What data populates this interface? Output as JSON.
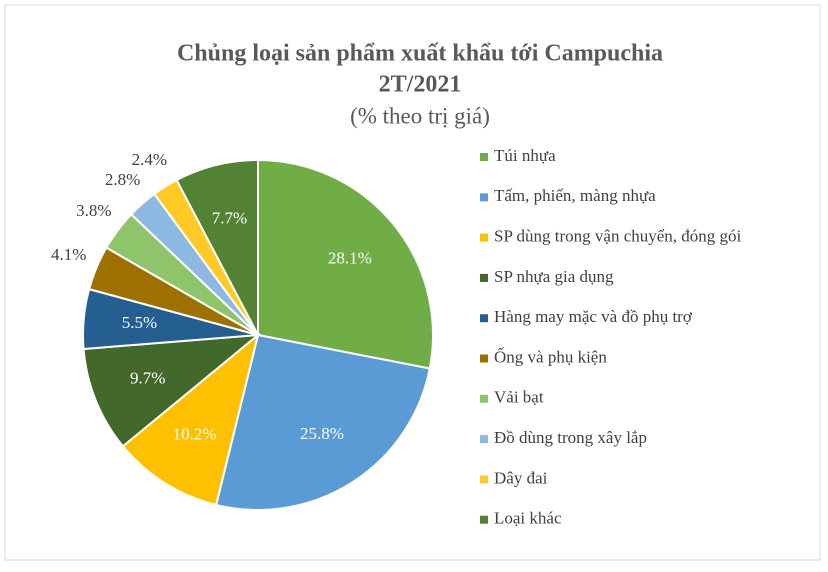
{
  "chart_data": {
    "type": "pie",
    "title": [
      "Chủng loại sản phẩm xuất khẩu tới Campuchia",
      "2T/2021"
    ],
    "subtitle": "(% theo trị giá)",
    "categories": [
      "Túi nhựa",
      "Tấm, phiến, màng nhựa",
      "SP dùng trong vận chuyển, đóng gói",
      "SP nhựa gia dụng",
      "Hàng may mặc và đồ phụ trợ",
      "Ống và phụ kiện",
      "Vải bạt",
      "Đồ dùng trong xây lắp",
      "Dây đai",
      "Loại khác"
    ],
    "values": [
      28.1,
      25.8,
      10.2,
      9.7,
      5.5,
      4.1,
      3.8,
      2.8,
      2.4,
      7.7
    ],
    "value_labels": [
      "28.1%",
      "25.8%",
      "10.2%",
      "9.7%",
      "5.5%",
      "4.1%",
      "3.8%",
      "2.8%",
      "2.4%",
      "7.7%"
    ],
    "colors": [
      "#70ad47",
      "#5b9bd5",
      "#ffc000",
      "#43682b",
      "#255e91",
      "#9e7000",
      "#8fc56a",
      "#8db8e2",
      "#ffc926",
      "#548235"
    ],
    "legend": "right"
  }
}
